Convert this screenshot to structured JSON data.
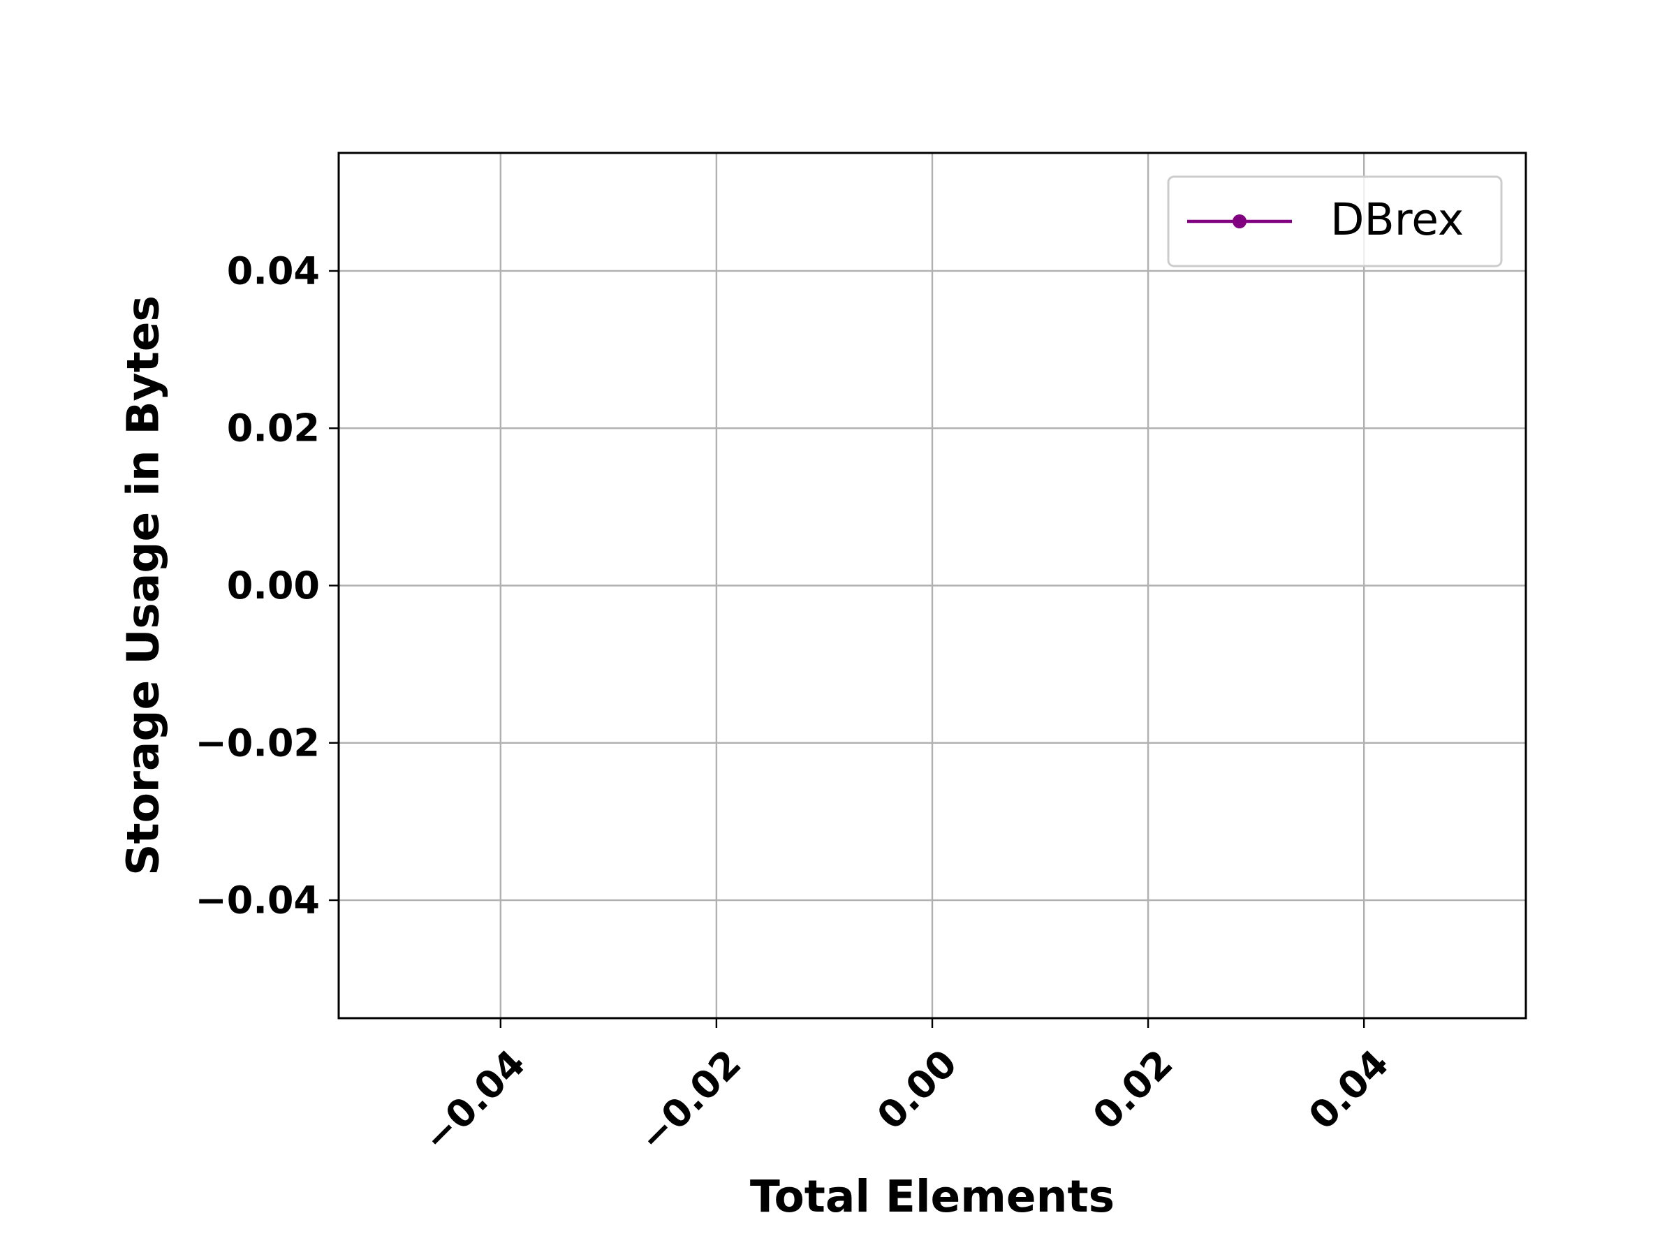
{
  "chart_data": {
    "type": "line",
    "title": "",
    "xlabel": "Total Elements",
    "ylabel": "Storage Usage in Bytes",
    "xlim": [
      -0.055,
      0.055
    ],
    "ylim": [
      -0.055,
      0.055
    ],
    "x_ticks": [
      -0.04,
      -0.02,
      0.0,
      0.02,
      0.04
    ],
    "y_ticks": [
      -0.04,
      -0.02,
      0.0,
      0.02,
      0.04
    ],
    "x_tick_labels": [
      "−0.04",
      "−0.02",
      "0.00",
      "0.02",
      "0.04"
    ],
    "y_tick_labels": [
      "−0.04",
      "−0.02",
      "0.00",
      "0.02",
      "0.04"
    ],
    "x_tick_rotation_deg": 45,
    "grid": true,
    "legend_position": "top-right",
    "series": [
      {
        "name": "DBrex",
        "color": "#800080",
        "marker": "circle",
        "x": [],
        "y": []
      }
    ]
  }
}
